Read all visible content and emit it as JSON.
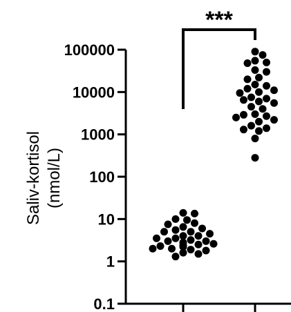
{
  "chart_data": {
    "type": "scatter",
    "title": "",
    "ylabel_line1": "Saliv-kortisol",
    "ylabel_line2": "(nmol/L)",
    "y_scale": "log",
    "ylim": [
      0.1,
      100000
    ],
    "yticks": [
      {
        "value": 0.1,
        "label": "0.1"
      },
      {
        "value": 1,
        "label": "1"
      },
      {
        "value": 10,
        "label": "10"
      },
      {
        "value": 100,
        "label": "100"
      },
      {
        "value": 1000,
        "label": "1000"
      },
      {
        "value": 10000,
        "label": "10000"
      },
      {
        "value": 100000,
        "label": "100000"
      }
    ],
    "xtick_labels": [
      "",
      ""
    ],
    "significance": "***",
    "grid": false,
    "legend": "none",
    "marker_color": "#000000",
    "series": [
      {
        "values": [
          14.0,
          13.5,
          10.0,
          9.5,
          8.0,
          7.5,
          6.5,
          6.0,
          5.5,
          5.0,
          5.0,
          4.5,
          4.0,
          4.0,
          3.5,
          3.5,
          3.2,
          3.0,
          3.0,
          2.8,
          2.6,
          2.5,
          2.4,
          2.3,
          2.2,
          2.0,
          2.0,
          1.9,
          1.8,
          1.6,
          1.5,
          1.3
        ]
      },
      {
        "values": [
          90000,
          75000,
          55000,
          50000,
          48000,
          33000,
          30000,
          22000,
          20000,
          15000,
          14000,
          12000,
          11000,
          10000,
          9500,
          7500,
          7000,
          6500,
          6000,
          5500,
          4500,
          4000,
          3000,
          2900,
          2700,
          2500,
          2200,
          2000,
          1600,
          1400,
          1300,
          1200,
          800,
          280
        ]
      }
    ]
  }
}
